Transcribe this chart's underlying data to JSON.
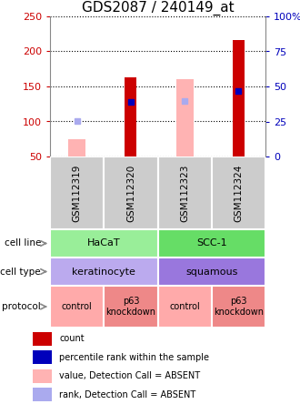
{
  "title": "GDS2087 / 240149_at",
  "samples": [
    "GSM112319",
    "GSM112320",
    "GSM112323",
    "GSM112324"
  ],
  "ylim_left": [
    50,
    250
  ],
  "ylim_right": [
    0,
    100
  ],
  "yticks_left": [
    50,
    100,
    150,
    200,
    250
  ],
  "yticks_right": [
    0,
    25,
    50,
    75,
    100
  ],
  "ytick_labels_right": [
    "0",
    "25",
    "50",
    "75",
    "100%"
  ],
  "red_bars": [
    null,
    163,
    null,
    216
  ],
  "red_bar_bottoms": [
    50,
    50,
    50,
    50
  ],
  "pink_bars": [
    75,
    null,
    160,
    null
  ],
  "pink_bar_bottoms": [
    50,
    null,
    50,
    null
  ],
  "blue_squares": [
    null,
    128,
    null,
    144
  ],
  "light_blue_squares": [
    100,
    null,
    129,
    null
  ],
  "red_bar_color": "#cc0000",
  "pink_bar_color": "#ffb3b3",
  "blue_sq_color": "#0000bb",
  "light_blue_sq_color": "#aaaaee",
  "cell_line_groups": {
    "HaCaT": [
      0,
      1
    ],
    "SCC-1": [
      2,
      3
    ]
  },
  "cell_line_colors": {
    "HaCaT": "#99ee99",
    "SCC-1": "#66dd66"
  },
  "cell_type_groups": {
    "keratinocyte": [
      0,
      1
    ],
    "squamous": [
      2,
      3
    ]
  },
  "cell_type_colors": {
    "keratinocyte": "#bbaaee",
    "squamous": "#9977dd"
  },
  "protocol_labels": [
    "control",
    "p63\nknockdown",
    "control",
    "p63\nknockdown"
  ],
  "protocol_colors": [
    "#ffaaaa",
    "#ee8888",
    "#ffaaaa",
    "#ee8888"
  ],
  "row_labels": [
    "cell line",
    "cell type",
    "protocol"
  ],
  "legend": [
    {
      "color": "#cc0000",
      "label": "count"
    },
    {
      "color": "#0000bb",
      "label": "percentile rank within the sample"
    },
    {
      "color": "#ffb3b3",
      "label": "value, Detection Call = ABSENT"
    },
    {
      "color": "#aaaaee",
      "label": "rank, Detection Call = ABSENT"
    }
  ],
  "title_fontsize": 11,
  "left_tick_color": "#cc0000",
  "right_tick_color": "#0000bb",
  "red_bar_width": 0.22,
  "pink_bar_width": 0.32,
  "sq_markersize": 4
}
